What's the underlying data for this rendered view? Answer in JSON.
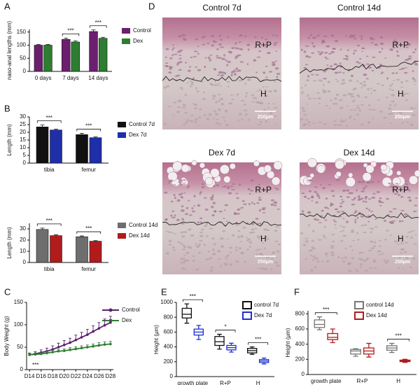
{
  "panel_labels": [
    "A",
    "B",
    "C",
    "D",
    "E",
    "F"
  ],
  "chart_data": [
    {
      "type": "bar",
      "y_label": "naso-anal lengths (mm)",
      "categories": [
        "0 days",
        "7 days",
        "14 days"
      ],
      "series": [
        {
          "name": "Control",
          "color": "#6b1f6e",
          "values": [
            100,
            122,
            152
          ],
          "errors": [
            3,
            5,
            6
          ]
        },
        {
          "name": "Dex",
          "color": "#2e7d32",
          "values": [
            100,
            112,
            126
          ],
          "errors": [
            3,
            4,
            4
          ]
        }
      ],
      "significance": [
        null,
        "***",
        "***"
      ],
      "ylim": [
        0,
        160
      ],
      "yticks": [
        0,
        50,
        100,
        150
      ]
    },
    {
      "type": "bar",
      "y_label": "Length (mm)",
      "categories": [
        "tibia",
        "femur"
      ],
      "series": [
        {
          "name": "Control 7d",
          "color": "#111111",
          "values": [
            23.5,
            18.5
          ],
          "errors": [
            1.2,
            0.8
          ]
        },
        {
          "name": "Dex 7d",
          "color": "#1f2fa8",
          "values": [
            21.5,
            16.5
          ],
          "errors": [
            0.6,
            0.5
          ]
        }
      ],
      "significance": [
        "***",
        "***"
      ],
      "ylim": [
        0,
        30
      ],
      "yticks": [
        0,
        5,
        10,
        15,
        20,
        25,
        30
      ]
    },
    {
      "type": "bar",
      "y_label": "Length (mm)",
      "categories": [
        "tibia",
        "femur"
      ],
      "series": [
        {
          "name": "Control 14d",
          "color": "#6e6e6e",
          "values": [
            29.5,
            23
          ],
          "errors": [
            1.2,
            0.7
          ]
        },
        {
          "name": "Dex 14d",
          "color": "#b01c1c",
          "values": [
            24,
            19
          ],
          "errors": [
            0.8,
            0.5
          ]
        }
      ],
      "significance": [
        "***",
        "***"
      ],
      "ylim": [
        0,
        35
      ],
      "yticks": [
        0,
        10,
        20,
        30
      ]
    },
    {
      "type": "line",
      "y_label": "Body Weight (g)",
      "x": [
        14,
        15,
        16,
        17,
        18,
        19,
        20,
        21,
        22,
        23,
        24,
        25,
        26,
        27,
        28
      ],
      "series": [
        {
          "name": "Control",
          "color": "#5b1f6e",
          "values": [
            33,
            35,
            38,
            41,
            45,
            50,
            55,
            60,
            66,
            72,
            78,
            85,
            92,
            99,
            105
          ],
          "errors": [
            4,
            5,
            6,
            7,
            8,
            9,
            10,
            10,
            11,
            11,
            12,
            13,
            13,
            14,
            14
          ]
        },
        {
          "name": "Dex",
          "color": "#2e7d32",
          "values": [
            33,
            34,
            35,
            37,
            39,
            41,
            42,
            44,
            46,
            48,
            50,
            52,
            54,
            56,
            57
          ],
          "errors": [
            3,
            3,
            3,
            4,
            4,
            4,
            4,
            5,
            5,
            5,
            5,
            5,
            6,
            6,
            6
          ]
        }
      ],
      "annotation": "***",
      "xlim": [
        13.5,
        28.5
      ],
      "xticks": [
        {
          "value": 14,
          "label": "D14"
        },
        {
          "value": 16,
          "label": "D16"
        },
        {
          "value": 18,
          "label": "D18"
        },
        {
          "value": 20,
          "label": "D20"
        },
        {
          "value": 22,
          "label": "D22"
        },
        {
          "value": 24,
          "label": "D24"
        },
        {
          "value": 26,
          "label": "D26"
        },
        {
          "value": 28,
          "label": "D28"
        }
      ],
      "ylim": [
        0,
        150
      ],
      "yticks": [
        0,
        50,
        100,
        150
      ]
    },
    {
      "type": "box",
      "y_label": "Height (μm)",
      "categories": [
        "growth plate",
        "R+P",
        "H"
      ],
      "series": [
        {
          "name": "control  7d",
          "color": "#111111",
          "values": [
            [
              720,
              790,
              840,
              920,
              980
            ],
            [
              370,
              420,
              470,
              540,
              570
            ],
            [
              300,
              320,
              350,
              380,
              400
            ]
          ]
        },
        {
          "name": "Dex 7d",
          "color": "#1f2fd0",
          "values": [
            [
              500,
              560,
              600,
              640,
              690
            ],
            [
              330,
              360,
              390,
              420,
              450
            ],
            [
              170,
              190,
              210,
              230,
              250
            ]
          ]
        }
      ],
      "significance": [
        "***",
        "*",
        "***"
      ],
      "ylim": [
        0,
        1000
      ],
      "yticks": [
        0,
        200,
        400,
        600,
        800,
        1000
      ]
    },
    {
      "type": "box",
      "y_label": "Height (μm)",
      "categories": [
        "growth plate",
        "R+P",
        "H"
      ],
      "series": [
        {
          "name": "control 14d",
          "color": "#777777",
          "values": [
            [
              590,
              620,
              660,
              720,
              760
            ],
            [
              240,
              270,
              310,
              330,
              340
            ],
            [
              290,
              320,
              350,
              380,
              410
            ]
          ]
        },
        {
          "name": "Dex 14d",
          "color": "#b01c1c",
          "values": [
            [
              420,
              460,
              490,
              540,
              600
            ],
            [
              230,
              270,
              310,
              350,
              410
            ],
            [
              160,
              170,
              180,
              190,
              200
            ]
          ]
        }
      ],
      "significance": [
        "***",
        null,
        "***"
      ],
      "ylim": [
        0,
        840
      ],
      "yticks": [
        0,
        200,
        400,
        600,
        800
      ]
    }
  ],
  "micrographs": [
    {
      "title": "Control 7d",
      "labels": [
        "R+P",
        "H"
      ],
      "scale_bar": "250μm"
    },
    {
      "title": "Control 14d",
      "labels": [
        "R+P",
        "H"
      ],
      "scale_bar": "250μm"
    },
    {
      "title": "Dex 7d",
      "labels": [
        "R+P",
        "H"
      ],
      "scale_bar": "250μm"
    },
    {
      "title": "Dex 14d",
      "labels": [
        "R+P",
        "H"
      ],
      "scale_bar": "250μm"
    }
  ]
}
